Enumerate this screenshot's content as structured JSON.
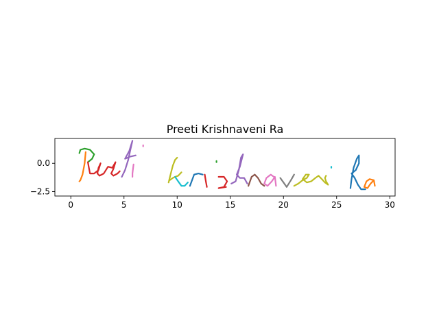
{
  "chart_data": {
    "type": "line",
    "title": "Preeti  Krishnaveni  Ra",
    "xlabel": "",
    "ylabel": "",
    "xlim": [
      -1.5,
      30.5
    ],
    "ylim": [
      -2.9,
      2.2
    ],
    "xticks": [
      0,
      5,
      10,
      15,
      20,
      25,
      30
    ],
    "xtick_labels": [
      "0",
      "5",
      "10",
      "15",
      "20",
      "25",
      "30"
    ],
    "yticks": [
      0.0,
      -2.5
    ],
    "ytick_labels": [
      "0.0",
      "−2.5"
    ],
    "grid": false,
    "legend": "none",
    "series": [
      {
        "color": "#2ca02c",
        "x": [
          0.8,
          0.9,
          1.3,
          1.8,
          2.2,
          2.0,
          1.6
        ],
        "y": [
          0.9,
          1.2,
          1.3,
          1.2,
          0.8,
          0.4,
          0.1
        ]
      },
      {
        "color": "#ff7f0e",
        "x": [
          1.4,
          1.3,
          1.1,
          0.9,
          0.8
        ],
        "y": [
          1.0,
          0.0,
          -1.0,
          -1.5,
          -1.6
        ]
      },
      {
        "color": "#d62728",
        "x": [
          1.6,
          1.7,
          1.8,
          2.2,
          2.6,
          2.8,
          2.6,
          2.5,
          2.7,
          3.1,
          3.5,
          3.9,
          4.2,
          4.0,
          3.8,
          4.0,
          4.4,
          4.6
        ],
        "y": [
          0.1,
          -0.4,
          -0.9,
          -0.9,
          -0.6,
          0.0,
          -0.4,
          -0.9,
          -1.1,
          -0.9,
          -0.3,
          -0.4,
          0.1,
          -0.5,
          -0.9,
          -1.1,
          -0.9,
          -0.7
        ]
      },
      {
        "color": "#9467bd",
        "x": [
          4.8,
          5.1,
          5.4,
          5.6,
          5.8,
          5.5,
          5.1,
          5.6,
          6.1
        ],
        "y": [
          -1.2,
          -0.6,
          0.3,
          1.2,
          2.0,
          1.1,
          0.4,
          0.6,
          0.7
        ]
      },
      {
        "color": "#e377c2",
        "x": [
          5.9,
          5.8,
          5.8
        ],
        "y": [
          -0.1,
          -0.9,
          -1.2
        ]
      },
      {
        "color": "#e377c2",
        "x": [
          6.8,
          6.8
        ],
        "y": [
          1.6,
          1.5
        ]
      },
      {
        "color": "#bcbd22",
        "x": [
          9.2,
          9.4,
          9.6,
          9.8,
          10.0
        ],
        "y": [
          -1.7,
          -0.9,
          -0.2,
          0.3,
          0.5
        ]
      },
      {
        "color": "#bcbd22",
        "x": [
          10.4,
          10.1,
          9.8,
          9.6,
          9.3
        ],
        "y": [
          -0.8,
          -1.1,
          -1.2,
          -1.3,
          -1.5
        ]
      },
      {
        "color": "#17becf",
        "x": [
          9.8,
          10.1,
          10.4,
          10.7,
          11.0
        ],
        "y": [
          -1.2,
          -1.6,
          -2.0,
          -2.0,
          -1.7
        ]
      },
      {
        "color": "#1f77b4",
        "x": [
          11.2,
          11.6,
          12.0,
          12.4
        ],
        "y": [
          -2.0,
          -1.0,
          -0.9,
          -1.0
        ]
      },
      {
        "color": "#d62728",
        "x": [
          12.6,
          12.7,
          12.8
        ],
        "y": [
          -1.0,
          -1.6,
          -2.1
        ]
      },
      {
        "color": "#2ca02c",
        "x": [
          13.7,
          13.7
        ],
        "y": [
          0.2,
          0.1
        ]
      },
      {
        "color": "#d62728",
        "x": [
          13.9,
          14.4,
          14.7,
          14.4,
          13.9,
          14.6
        ],
        "y": [
          -1.2,
          -1.2,
          -1.6,
          -2.1,
          -2.2,
          -2.1
        ]
      },
      {
        "color": "#9467bd",
        "x": [
          15.1,
          15.5,
          15.8,
          16.0,
          16.2,
          15.9,
          15.6,
          15.9,
          16.3,
          16.6
        ],
        "y": [
          -1.8,
          -1.6,
          -0.6,
          0.5,
          0.8,
          -0.3,
          -1.0,
          -1.3,
          -1.3,
          -1.8
        ]
      },
      {
        "color": "#8c564b",
        "x": [
          16.7,
          17.0,
          17.3,
          17.6,
          17.9,
          18.2
        ],
        "y": [
          -2.0,
          -1.2,
          -1.0,
          -1.3,
          -1.8,
          -2.0
        ]
      },
      {
        "color": "#e377c2",
        "x": [
          19.1,
          18.8,
          18.4,
          18.2,
          18.5,
          18.9,
          19.2,
          19.3
        ],
        "y": [
          -1.2,
          -1.0,
          -1.3,
          -1.8,
          -2.0,
          -1.6,
          -1.2,
          -2.0
        ]
      },
      {
        "color": "#7f7f7f",
        "x": [
          19.7,
          20.0,
          20.3,
          20.7,
          21.0
        ],
        "y": [
          -1.3,
          -1.7,
          -2.1,
          -1.5,
          -1.0
        ]
      },
      {
        "color": "#bcbd22",
        "x": [
          21.0,
          21.4,
          21.8,
          22.2,
          22.4,
          22.1,
          21.8,
          22.2,
          22.6,
          23.0,
          23.3,
          23.6,
          23.9,
          24.2,
          24.0,
          23.9,
          24.0
        ],
        "y": [
          -2.0,
          -1.8,
          -1.5,
          -1.3,
          -1.0,
          -1.0,
          -1.4,
          -1.7,
          -1.6,
          -1.3,
          -1.1,
          -1.4,
          -1.7,
          -1.9,
          -1.6,
          -1.3,
          -1.1
        ]
      },
      {
        "color": "#17becf",
        "x": [
          24.5,
          24.5
        ],
        "y": [
          -0.3,
          -0.4
        ]
      },
      {
        "color": "#1f77b4",
        "x": [
          26.3,
          26.4,
          26.6,
          26.9,
          27.1,
          27.1,
          26.8,
          26.4,
          26.7,
          27.0,
          27.3,
          27.7
        ],
        "y": [
          -2.2,
          -1.4,
          -0.4,
          0.4,
          0.7,
          0.0,
          -0.6,
          -0.9,
          -1.3,
          -1.9,
          -2.3,
          -2.3
        ]
      },
      {
        "color": "#ff7f0e",
        "x": [
          28.5,
          28.1,
          27.8,
          27.6,
          27.9,
          28.2,
          28.5,
          28.6
        ],
        "y": [
          -1.5,
          -1.4,
          -1.6,
          -2.1,
          -2.2,
          -1.8,
          -1.5,
          -2.0
        ]
      }
    ]
  }
}
